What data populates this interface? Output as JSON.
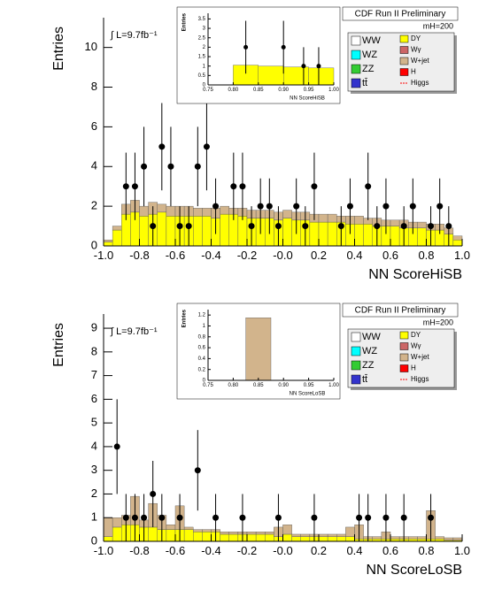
{
  "chart_data": [
    {
      "type": "histogram",
      "title": "CDF Run II Preliminary",
      "annotation": "∫ L=9.7fb⁻¹",
      "mass_label": "mH=200",
      "x_label": "NN ScoreHiSB",
      "y_label": "Entries",
      "xlim": [
        -1,
        1
      ],
      "xticks": [
        {
          "value": -1,
          "label": "-1.0"
        },
        -0.8,
        -0.6,
        -0.4,
        -0.2,
        {
          "value": 0,
          "label": "-0.0"
        },
        0.2,
        0.4,
        0.6,
        0.8,
        {
          "value": 1,
          "label": "1.0"
        }
      ],
      "ylim": [
        0,
        11.5
      ],
      "yticks": [
        0,
        2,
        4,
        6,
        8,
        10
      ],
      "bins": [
        -1,
        -0.95,
        -0.9,
        -0.85,
        -0.8,
        -0.75,
        -0.7,
        -0.65,
        -0.6,
        -0.55,
        -0.5,
        -0.45,
        -0.4,
        -0.35,
        -0.3,
        -0.25,
        -0.2,
        -0.15,
        -0.1,
        -0.05,
        0,
        0.05,
        0.1,
        0.15,
        0.2,
        0.25,
        0.3,
        0.35,
        0.4,
        0.45,
        0.5,
        0.55,
        0.6,
        0.65,
        0.7,
        0.75,
        0.8,
        0.85,
        0.9,
        0.95,
        1
      ],
      "series": [
        {
          "name": "WW",
          "color": "#ffffff"
        },
        {
          "name": "WZ",
          "color": "#00ffff"
        },
        {
          "name": "ZZ",
          "color": "#33cc33"
        },
        {
          "name": "tt̄",
          "color": "#3333cc"
        },
        {
          "name": "DY",
          "color": "#ffff00",
          "values": [
            0.2,
            0.8,
            1.6,
            1.7,
            1.5,
            1.6,
            1.7,
            1.5,
            1.5,
            1.5,
            1.5,
            1.5,
            1.4,
            1.6,
            1.6,
            1.5,
            1.4,
            1.4,
            1.4,
            1.3,
            1.4,
            1.3,
            1.3,
            1.2,
            1.2,
            1.2,
            1.2,
            1.1,
            1.1,
            1.1,
            1.0,
            1.0,
            1.0,
            0.9,
            0.9,
            0.9,
            0.8,
            0.8,
            0.6,
            0.3
          ]
        },
        {
          "name": "Wγ",
          "color": "#cc6666"
        },
        {
          "name": "W+jet",
          "color": "#d2b48c",
          "values": [
            0.1,
            0.2,
            0.5,
            0.6,
            0.5,
            0.6,
            0.4,
            0.5,
            0.5,
            0.5,
            0.4,
            0.4,
            0.5,
            0.4,
            0.3,
            0.4,
            0.4,
            0.4,
            0.4,
            0.4,
            0.4,
            0.4,
            0.4,
            0.4,
            0.4,
            0.4,
            0.3,
            0.4,
            0.4,
            0.3,
            0.4,
            0.3,
            0.3,
            0.4,
            0.3,
            0.3,
            0.3,
            0.3,
            0.3,
            0.2
          ]
        },
        {
          "name": "H",
          "color": "#ff0000"
        },
        {
          "name": "Higgs",
          "color": "#ff0000"
        }
      ],
      "data": {
        "x": [
          -0.875,
          -0.825,
          -0.775,
          -0.725,
          -0.675,
          -0.625,
          -0.575,
          -0.525,
          -0.475,
          -0.425,
          -0.375,
          -0.275,
          -0.225,
          -0.175,
          -0.125,
          -0.075,
          -0.025,
          0.075,
          0.125,
          0.175,
          0.325,
          0.375,
          0.475,
          0.525,
          0.575,
          0.675,
          0.725,
          0.825,
          0.875,
          0.925
        ],
        "values": [
          3,
          3,
          4,
          1,
          5,
          4,
          1,
          1,
          4,
          5,
          2,
          3,
          3,
          1,
          2,
          2,
          1,
          2,
          1,
          3,
          1,
          2,
          3,
          1,
          2,
          1,
          2,
          1,
          2,
          1
        ],
        "errors": [
          1.7,
          1.7,
          2,
          1,
          2.2,
          2,
          1,
          1,
          2,
          2.2,
          1.4,
          1.7,
          1.7,
          1,
          1.4,
          1.4,
          1,
          1.4,
          1,
          1.7,
          1,
          1.4,
          1.7,
          1,
          1.4,
          1,
          1.4,
          1,
          1.4,
          1
        ]
      }
    },
    {
      "type": "histogram",
      "x_label": "NN ScoreHiSB",
      "y_label": "Entries",
      "xlim": [
        0.75,
        1
      ],
      "xticks": [
        0.75,
        {
          "value": 0.8,
          "label": "0.80"
        },
        0.85,
        {
          "value": 0.9,
          "label": "0.90"
        },
        0.95,
        {
          "value": 1,
          "label": "1.00"
        }
      ],
      "ylim": [
        0,
        3.8
      ],
      "yticks": [
        0,
        0.5,
        1,
        1.5,
        2,
        2.5,
        3,
        3.5
      ],
      "bins": [
        0.8,
        0.85,
        0.9,
        0.95,
        1.0
      ],
      "series": [
        {
          "color": "#ffff00",
          "values": [
            1.05,
            1.0,
            0.95,
            0.9
          ]
        }
      ],
      "data": {
        "x": [
          0.825,
          0.9,
          0.94,
          0.97
        ],
        "values": [
          2,
          2,
          1,
          1
        ],
        "errors": [
          1.4,
          1.4,
          1,
          1
        ]
      }
    },
    {
      "type": "histogram",
      "title": "CDF Run II Preliminary",
      "annotation": "∫ L=9.7fb⁻¹",
      "mass_label": "mH=200",
      "x_label": "NN ScoreLoSB",
      "y_label": "Entries",
      "xlim": [
        -1,
        1
      ],
      "xticks": [
        {
          "value": -1,
          "label": "-1.0"
        },
        -0.8,
        -0.6,
        -0.4,
        -0.2,
        {
          "value": 0,
          "label": "-0.0"
        },
        0.2,
        0.4,
        0.6,
        0.8,
        {
          "value": 1,
          "label": "1.0"
        }
      ],
      "ylim": [
        0,
        9.6
      ],
      "yticks": [
        0,
        1,
        2,
        3,
        4,
        5,
        6,
        7,
        8,
        9
      ],
      "bins": [
        -1,
        -0.95,
        -0.9,
        -0.85,
        -0.8,
        -0.75,
        -0.7,
        -0.65,
        -0.6,
        -0.55,
        -0.5,
        -0.45,
        -0.4,
        -0.35,
        -0.3,
        -0.25,
        -0.2,
        -0.15,
        -0.1,
        -0.05,
        0,
        0.05,
        0.1,
        0.15,
        0.2,
        0.25,
        0.3,
        0.35,
        0.4,
        0.45,
        0.5,
        0.55,
        0.6,
        0.65,
        0.7,
        0.75,
        0.8,
        0.85,
        0.9,
        0.95,
        1
      ],
      "series": [
        {
          "name": "WW",
          "color": "#ffffff"
        },
        {
          "name": "WZ",
          "color": "#00ffff"
        },
        {
          "name": "ZZ",
          "color": "#33cc33"
        },
        {
          "name": "tt̄",
          "color": "#3333cc"
        },
        {
          "name": "DY",
          "color": "#ffff00",
          "values": [
            0.2,
            0.6,
            0.7,
            0.7,
            0.6,
            0.6,
            0.5,
            0.5,
            0.5,
            0.5,
            0.4,
            0.4,
            0.4,
            0.3,
            0.3,
            0.3,
            0.3,
            0.3,
            0.3,
            0.2,
            0.3,
            0.2,
            0.2,
            0.2,
            0.2,
            0.2,
            0.2,
            0.2,
            0.1,
            0.1,
            0.1,
            0.1,
            0.1,
            0.1,
            0.1,
            0.1,
            0.1,
            0.1,
            0.05,
            0.05
          ]
        },
        {
          "name": "Wγ",
          "color": "#cc6666"
        },
        {
          "name": "W+jet",
          "color": "#d2b48c",
          "values": [
            0.8,
            0.4,
            0.4,
            1.2,
            0.3,
            1.0,
            0.6,
            0.2,
            1.0,
            0.1,
            0.1,
            0.1,
            0.1,
            0.1,
            0.1,
            0.1,
            0.1,
            0.1,
            0.1,
            0.4,
            0.4,
            0.1,
            0.1,
            0.1,
            0.1,
            0.1,
            0.1,
            0.4,
            0.6,
            0.1,
            0.1,
            0.3,
            0.1,
            0.1,
            0.1,
            0.1,
            1.2,
            0.1,
            0.1,
            0.1
          ]
        },
        {
          "name": "H",
          "color": "#ff0000"
        },
        {
          "name": "Higgs",
          "color": "#ff0000"
        }
      ],
      "data": {
        "x": [
          -0.925,
          -0.875,
          -0.825,
          -0.775,
          -0.725,
          -0.675,
          -0.575,
          -0.475,
          -0.375,
          -0.225,
          -0.025,
          0.175,
          0.425,
          0.475,
          0.575,
          0.675,
          0.825
        ],
        "values": [
          4,
          1,
          1,
          1,
          2,
          1,
          1,
          3,
          1,
          1,
          1,
          1,
          1,
          1,
          1,
          1,
          1
        ],
        "errors": [
          2,
          1,
          1,
          1,
          1.4,
          1,
          1,
          1.7,
          1,
          1,
          1,
          1,
          1,
          1,
          1,
          1,
          1
        ]
      }
    },
    {
      "type": "histogram",
      "x_label": "NN ScoreLoSB",
      "y_label": "Entries",
      "xlim": [
        0.75,
        1
      ],
      "xticks": [
        0.75,
        {
          "value": 0.8,
          "label": "0.80"
        },
        0.85,
        {
          "value": 0.9,
          "label": "0.90"
        },
        0.95,
        {
          "value": 1,
          "label": "1.00"
        }
      ],
      "ylim": [
        0,
        1.3
      ],
      "yticks": [
        0,
        0.2,
        0.4,
        0.6,
        0.8,
        1,
        1.2
      ],
      "bins": [
        0.825,
        0.875
      ],
      "series": [
        {
          "color": "#d2b48c",
          "values": [
            1.15
          ]
        }
      ]
    }
  ]
}
